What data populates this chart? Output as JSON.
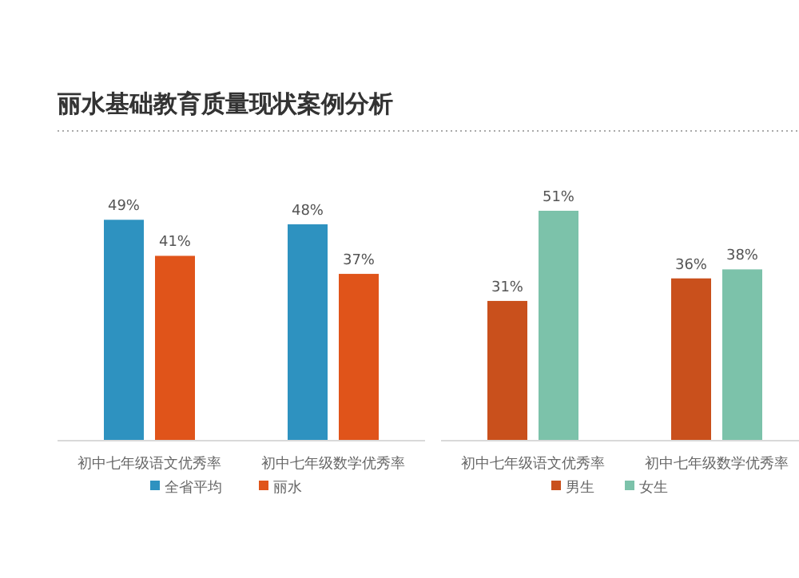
{
  "chart_data": [
    {
      "type": "bar",
      "title": "丽水基础教育质量现状案例分析",
      "categories": [
        "初中七年级语文优秀率",
        "初中七年级数学优秀率"
      ],
      "legend": "bottom",
      "series": [
        {
          "name": "全省平均",
          "color": "#2e92c0",
          "values": [
            49,
            48
          ],
          "value_labels": [
            "49%",
            "48%"
          ]
        },
        {
          "name": "丽水",
          "color": "#e0541a",
          "values": [
            41,
            37
          ],
          "value_labels": [
            "41%",
            "37%"
          ]
        }
      ]
    },
    {
      "type": "bar",
      "categories": [
        "初中七年级语文优秀率",
        "初中七年级数学优秀率"
      ],
      "legend": "bottom",
      "series": [
        {
          "name": "男生",
          "color": "#c9501c",
          "values": [
            31,
            36
          ],
          "value_labels": [
            "31%",
            "36%"
          ]
        },
        {
          "name": "女生",
          "color": "#7cc2aa",
          "values": [
            51,
            38
          ],
          "value_labels": [
            "51%",
            "38%"
          ]
        }
      ]
    }
  ]
}
